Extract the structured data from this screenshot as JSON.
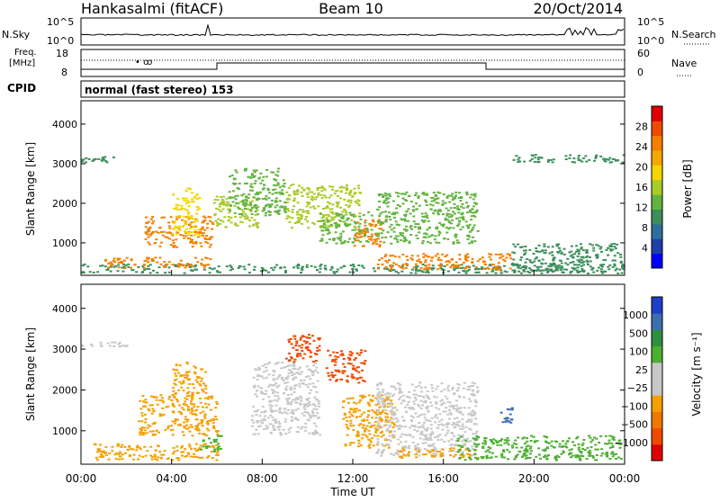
{
  "header": {
    "station": "Hankasalmi (fitACF)",
    "beam": "Beam 10",
    "date": "20/Oct/2014"
  },
  "noise_panel": {
    "left_label": "N.Sky",
    "right_label": "N.Search",
    "left_ticks": [
      "10^5",
      "10^0"
    ],
    "right_ticks": [
      "10^5",
      "10^0"
    ]
  },
  "freq_panel": {
    "left_label_top": "Freq.",
    "left_label_unit": "[MHz]",
    "left_ticks": [
      "18",
      "8"
    ],
    "right_label": "Nave",
    "right_ticks": [
      "60",
      "0"
    ]
  },
  "cpid": {
    "label": "CPID",
    "value": "normal (fast stereo) 153"
  },
  "chart_data": [
    {
      "type": "heatmap",
      "name": "power",
      "ylabel": "Slant Range [km]",
      "yticks": [
        "4000",
        "3000",
        "2000",
        "1000"
      ],
      "ylim": [
        180,
        4590
      ],
      "xlim": [
        0,
        24
      ],
      "colorbar": {
        "label": "Power [dB]",
        "ticks": [
          "28",
          "24",
          "20",
          "16",
          "12",
          "8",
          "4"
        ],
        "colors": [
          "#0000ff",
          "#1f3fa8",
          "#2f6f9f",
          "#3c8f5c",
          "#63b340",
          "#a8cc28",
          "#f5d600",
          "#f5a800",
          "#f58000",
          "#f04a00",
          "#e00000"
        ]
      },
      "regions": [
        {
          "x": [
            0,
            24
          ],
          "y": [
            250,
            480
          ],
          "level": 8
        },
        {
          "x": [
            1.0,
            5.8
          ],
          "y": [
            380,
            650
          ],
          "level": 24
        },
        {
          "x": [
            2.8,
            5.8
          ],
          "y": [
            900,
            1700
          ],
          "level": 24
        },
        {
          "x": [
            4.0,
            5.2
          ],
          "y": [
            1200,
            2400
          ],
          "level": 20
        },
        {
          "x": [
            5.8,
            7.8
          ],
          "y": [
            1400,
            2200
          ],
          "level": 16
        },
        {
          "x": [
            6.5,
            9.0
          ],
          "y": [
            1700,
            2900
          ],
          "level": 12
        },
        {
          "x": [
            9.0,
            12.3
          ],
          "y": [
            1400,
            2500
          ],
          "level": 16
        },
        {
          "x": [
            10.5,
            12.8
          ],
          "y": [
            1000,
            1800
          ],
          "level": 12
        },
        {
          "x": [
            12.0,
            13.2
          ],
          "y": [
            900,
            1600
          ],
          "level": 24
        },
        {
          "x": [
            13.0,
            17.5
          ],
          "y": [
            1000,
            2300
          ],
          "level": 12
        },
        {
          "x": [
            13.0,
            19.0
          ],
          "y": [
            350,
            750
          ],
          "level": 24
        },
        {
          "x": [
            19.0,
            23.8
          ],
          "y": [
            300,
            1000
          ],
          "level": 8
        },
        {
          "x": [
            0,
            1.8
          ],
          "y": [
            3050,
            3200
          ],
          "level": 8
        },
        {
          "x": [
            19.0,
            24.0
          ],
          "y": [
            3050,
            3250
          ],
          "level": 8
        }
      ]
    },
    {
      "type": "heatmap",
      "name": "velocity",
      "ylabel": "Slant Range [km]",
      "yticks": [
        "4000",
        "3000",
        "2000",
        "1000"
      ],
      "ylim": [
        180,
        4590
      ],
      "xlim": [
        0,
        24
      ],
      "xlabel": "Time UT",
      "xticks": [
        "00:00",
        "04:00",
        "08:00",
        "12:00",
        "16:00",
        "20:00",
        "00:00"
      ],
      "colorbar": {
        "label": "Velocity [m s⁻¹]",
        "ticks": [
          "1000",
          "500",
          "100",
          "25",
          "−25",
          "−100",
          "−500",
          "−1000"
        ],
        "colors": [
          "#e00000",
          "#f04a00",
          "#f07800",
          "#f5a000",
          "#c8c8c8",
          "#c8c8c8",
          "#4caf30",
          "#2f8f40",
          "#3c6fb0",
          "#1f3fc8"
        ]
      },
      "regions": [
        {
          "x": [
            0,
            2.0
          ],
          "y": [
            3080,
            3200
          ],
          "level": 25
        },
        {
          "x": [
            0.5,
            6.0
          ],
          "y": [
            300,
            700
          ],
          "level": -100
        },
        {
          "x": [
            2.5,
            6.0
          ],
          "y": [
            900,
            1900
          ],
          "level": -100
        },
        {
          "x": [
            4.0,
            5.5
          ],
          "y": [
            1900,
            2700
          ],
          "level": -100
        },
        {
          "x": [
            5.2,
            6.2
          ],
          "y": [
            500,
            900
          ],
          "level": 100
        },
        {
          "x": [
            7.5,
            10.5
          ],
          "y": [
            900,
            2700
          ],
          "level": 25
        },
        {
          "x": [
            9.0,
            10.5
          ],
          "y": [
            2700,
            3400
          ],
          "level": -500
        },
        {
          "x": [
            10.8,
            12.5
          ],
          "y": [
            2200,
            3000
          ],
          "level": -500
        },
        {
          "x": [
            11.5,
            13.8
          ],
          "y": [
            600,
            1900
          ],
          "level": -100
        },
        {
          "x": [
            13.0,
            17.5
          ],
          "y": [
            400,
            2200
          ],
          "level": 25
        },
        {
          "x": [
            14.0,
            17.5
          ],
          "y": [
            350,
            600
          ],
          "level": -100
        },
        {
          "x": [
            16.5,
            23.8
          ],
          "y": [
            300,
            900
          ],
          "level": 100
        },
        {
          "x": [
            18.5,
            19.0
          ],
          "y": [
            1200,
            1600
          ],
          "level": 500
        }
      ]
    }
  ]
}
